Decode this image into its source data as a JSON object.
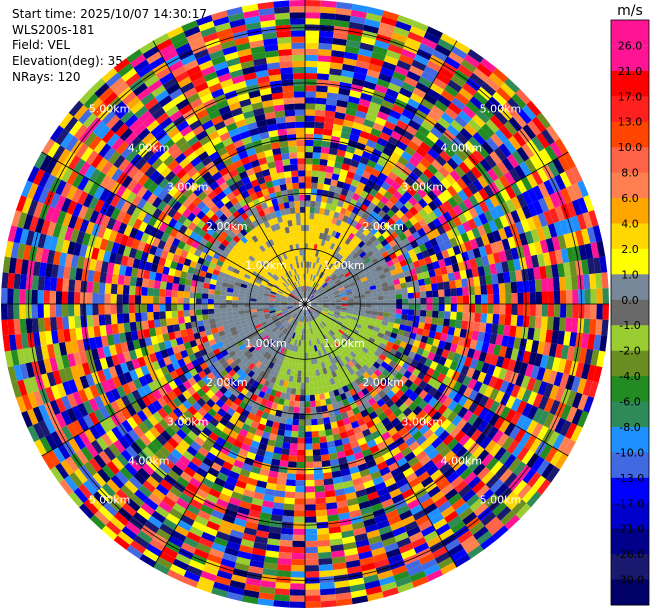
{
  "header": {
    "start_time": "Start time: 2025/10/07 14:30:17",
    "instrument": "WLS200s-181",
    "field": "Field: VEL",
    "elevation": "Elevation(deg): 35.00",
    "nrays": "NRays: 120"
  },
  "chart_data": {
    "type": "heatmap",
    "projection": "polar-ppi",
    "field": "VEL",
    "nrays": 120,
    "elevation_deg": 35.0,
    "range_max_km": 5.5,
    "range_ring_labels": [
      "1.00km",
      "2.00km",
      "3.00km",
      "4.00km",
      "5.00km"
    ],
    "range_rings_km": [
      1,
      2,
      3,
      4,
      5
    ],
    "spokes_deg": [
      0,
      30,
      60,
      90,
      120,
      150,
      180,
      210,
      240,
      270,
      300,
      330
    ],
    "colorbar": {
      "unit": "m/s",
      "levels": [
        {
          "label": "26.0",
          "color": "#ff1493"
        },
        {
          "label": "21.0",
          "color": "#ff0000"
        },
        {
          "label": "17.0",
          "color": "#ff2020"
        },
        {
          "label": "13.0",
          "color": "#ff4500"
        },
        {
          "label": "10.0",
          "color": "#ff6347"
        },
        {
          "label": "8.0",
          "color": "#ff7f50"
        },
        {
          "label": "6.0",
          "color": "#ffa500"
        },
        {
          "label": "4.0",
          "color": "#ffd700"
        },
        {
          "label": "2.0",
          "color": "#ffff00"
        },
        {
          "label": "1.0",
          "color": "#778899"
        },
        {
          "label": "0.0",
          "color": "#696969"
        },
        {
          "label": "-1.0",
          "color": "#9acd32"
        },
        {
          "label": "-2.0",
          "color": "#6b8e23"
        },
        {
          "label": "-4.0",
          "color": "#228b22"
        },
        {
          "label": "-6.0",
          "color": "#2e8b57"
        },
        {
          "label": "-8.0",
          "color": "#1e90ff"
        },
        {
          "label": "-10.0",
          "color": "#4169e1"
        },
        {
          "label": "-13.0",
          "color": "#0000ff"
        },
        {
          "label": "-17.0",
          "color": "#0000cd"
        },
        {
          "label": "-21.0",
          "color": "#00008b"
        },
        {
          "label": "-26.0",
          "color": "#191970"
        },
        {
          "label": "-30.0",
          "color": "#000066"
        }
      ],
      "top_color": "#ff1493"
    }
  }
}
